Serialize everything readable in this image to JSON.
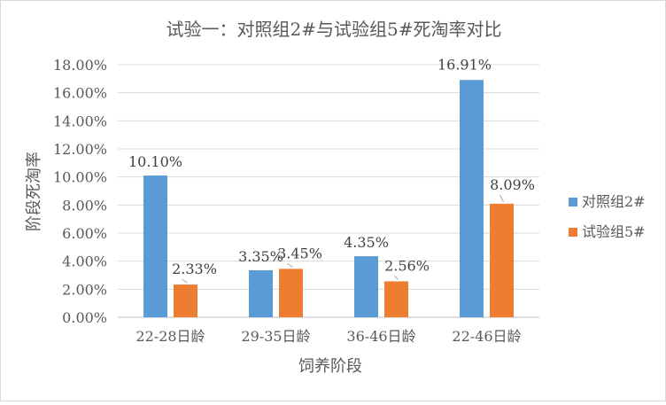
{
  "chart_data": {
    "type": "bar",
    "title": "试验一：对照组2#与试验组5#死淘率对比",
    "xlabel": "饲养阶段",
    "ylabel": "阶段死淘率",
    "categories": [
      "22-28日龄",
      "29-35日龄",
      "36-46日龄",
      "22-46日龄"
    ],
    "series": [
      {
        "name": "对照组2#",
        "color": "#5b9bd5",
        "values": [
          10.1,
          3.35,
          4.35,
          16.91
        ],
        "labels": [
          "10.10%",
          "3.35%",
          "4.35%",
          "16.91%"
        ]
      },
      {
        "name": "试验组5#",
        "color": "#ed7d31",
        "values": [
          2.33,
          3.45,
          2.56,
          8.09
        ],
        "labels": [
          "2.33%",
          "3.45%",
          "2.56%",
          "8.09%"
        ]
      }
    ],
    "ylim": [
      0,
      18
    ],
    "yticks": [
      0,
      2,
      4,
      6,
      8,
      10,
      12,
      14,
      16,
      18
    ],
    "ytick_labels": [
      "0.00%",
      "2.00%",
      "4.00%",
      "6.00%",
      "8.00%",
      "10.00%",
      "12.00%",
      "14.00%",
      "16.00%",
      "18.00%"
    ],
    "grid": true,
    "legend_position": "right"
  }
}
